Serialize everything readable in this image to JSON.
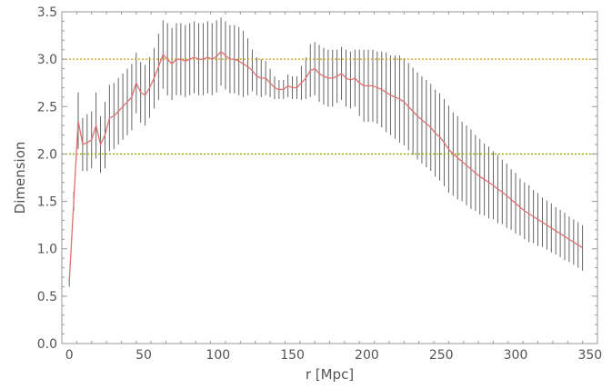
{
  "chart_data": {
    "type": "line",
    "title": "",
    "xlabel": "r [Mpc]",
    "ylabel": "Dimension",
    "xlim": [
      -5,
      355
    ],
    "ylim": [
      0,
      3.5
    ],
    "xticks": [
      0,
      50,
      100,
      150,
      200,
      250,
      300,
      350
    ],
    "yticks": [
      0.0,
      0.5,
      1.0,
      1.5,
      2.0,
      2.5,
      3.0,
      3.5
    ],
    "xtick_labels": [
      "0",
      "50",
      "100",
      "150",
      "200",
      "250",
      "300",
      "350"
    ],
    "ytick_labels": [
      "0.0",
      "0.5",
      "1.0",
      "1.5",
      "2.0",
      "2.5",
      "3.0",
      "3.5"
    ],
    "grid": false,
    "frame": "box with minor ticks",
    "reference_lines": [
      {
        "y": 3.0,
        "style": "dotted",
        "color": "#c8a000"
      },
      {
        "y": 2.0,
        "style": "dotted",
        "color": "#88aa00"
      }
    ],
    "series": [
      {
        "color": "#e07070",
        "error_bar_color": "#555555",
        "x": [
          0,
          3,
          6,
          9,
          12,
          15,
          18,
          21,
          24,
          27,
          30,
          33,
          36,
          39,
          42,
          45,
          48,
          51,
          54,
          57,
          60,
          63,
          66,
          69,
          72,
          75,
          78,
          81,
          84,
          87,
          90,
          93,
          96,
          99,
          102,
          105,
          108,
          111,
          114,
          117,
          120,
          123,
          126,
          129,
          132,
          135,
          138,
          141,
          144,
          147,
          150,
          153,
          156,
          159,
          162,
          165,
          168,
          171,
          174,
          177,
          180,
          183,
          186,
          189,
          192,
          195,
          198,
          201,
          204,
          207,
          210,
          213,
          216,
          219,
          222,
          225,
          228,
          231,
          234,
          237,
          240,
          243,
          246,
          249,
          252,
          255,
          258,
          261,
          264,
          267,
          270,
          273,
          276,
          279,
          282,
          285,
          288,
          291,
          294,
          297,
          300,
          303,
          306,
          309,
          312,
          315,
          318,
          321,
          324,
          327,
          330,
          333,
          336,
          339,
          342,
          345
        ],
        "y": [
          0.65,
          1.5,
          2.35,
          2.1,
          2.12,
          2.15,
          2.3,
          2.1,
          2.2,
          2.38,
          2.4,
          2.45,
          2.5,
          2.55,
          2.6,
          2.75,
          2.65,
          2.62,
          2.7,
          2.8,
          2.92,
          3.05,
          3.0,
          2.95,
          3.0,
          3.0,
          2.98,
          3.0,
          3.02,
          3.0,
          3.0,
          3.02,
          3.0,
          3.03,
          3.08,
          3.04,
          3.0,
          3.0,
          2.98,
          2.95,
          2.92,
          2.88,
          2.82,
          2.8,
          2.8,
          2.75,
          2.7,
          2.68,
          2.68,
          2.72,
          2.7,
          2.7,
          2.75,
          2.8,
          2.88,
          2.9,
          2.85,
          2.82,
          2.8,
          2.8,
          2.82,
          2.85,
          2.8,
          2.78,
          2.8,
          2.75,
          2.72,
          2.72,
          2.72,
          2.7,
          2.68,
          2.65,
          2.62,
          2.6,
          2.58,
          2.55,
          2.5,
          2.45,
          2.4,
          2.36,
          2.32,
          2.28,
          2.22,
          2.18,
          2.12,
          2.05,
          2.0,
          1.96,
          1.92,
          1.88,
          1.84,
          1.8,
          1.76,
          1.73,
          1.7,
          1.67,
          1.63,
          1.6,
          1.56,
          1.52,
          1.48,
          1.44,
          1.4,
          1.37,
          1.34,
          1.31,
          1.28,
          1.25,
          1.22,
          1.19,
          1.16,
          1.13,
          1.1,
          1.07,
          1.04,
          1.01
        ],
        "err": [
          0.05,
          0.1,
          0.3,
          0.28,
          0.3,
          0.3,
          0.35,
          0.3,
          0.35,
          0.35,
          0.35,
          0.35,
          0.35,
          0.35,
          0.35,
          0.32,
          0.32,
          0.32,
          0.32,
          0.32,
          0.35,
          0.36,
          0.38,
          0.38,
          0.38,
          0.38,
          0.38,
          0.38,
          0.38,
          0.38,
          0.38,
          0.38,
          0.38,
          0.38,
          0.36,
          0.36,
          0.36,
          0.36,
          0.36,
          0.35,
          0.3,
          0.22,
          0.2,
          0.2,
          0.18,
          0.15,
          0.12,
          0.1,
          0.1,
          0.12,
          0.12,
          0.12,
          0.18,
          0.22,
          0.28,
          0.28,
          0.3,
          0.3,
          0.3,
          0.3,
          0.28,
          0.28,
          0.3,
          0.3,
          0.3,
          0.35,
          0.38,
          0.38,
          0.38,
          0.38,
          0.4,
          0.42,
          0.42,
          0.44,
          0.46,
          0.46,
          0.46,
          0.46,
          0.46,
          0.46,
          0.46,
          0.46,
          0.46,
          0.46,
          0.46,
          0.46,
          0.44,
          0.44,
          0.42,
          0.42,
          0.42,
          0.4,
          0.4,
          0.38,
          0.38,
          0.36,
          0.36,
          0.34,
          0.34,
          0.32,
          0.32,
          0.3,
          0.3,
          0.3,
          0.28,
          0.28,
          0.26,
          0.26,
          0.26,
          0.25,
          0.25,
          0.25,
          0.24,
          0.24,
          0.24,
          0.24
        ]
      }
    ]
  }
}
